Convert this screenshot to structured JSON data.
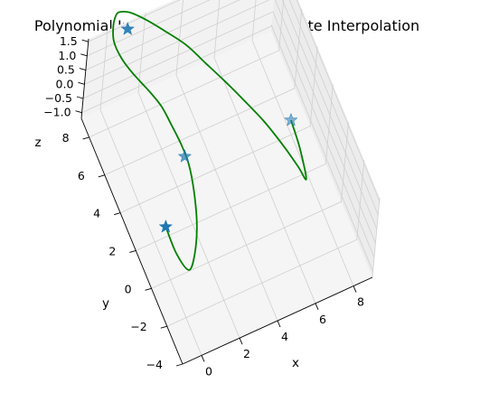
{
  "chart_data": {
    "type": "line",
    "title": "Polynomial Interpolation, Cubic Hermite Interpolation",
    "xlabel": "x",
    "ylabel": "y",
    "zlabel": "z",
    "xlim": [
      -1,
      9
    ],
    "ylim": [
      -4,
      9
    ],
    "zlim": [
      -1.2,
      1.6
    ],
    "x_ticks": [
      "0",
      "2",
      "4",
      "6",
      "8"
    ],
    "y_ticks": [
      "−4",
      "−2",
      "0",
      "2",
      "4",
      "6",
      "8"
    ],
    "z_ticks": [
      "−1.0",
      "−0.5",
      "0.0",
      "0.5",
      "1.0",
      "1.5"
    ],
    "grid": true,
    "colors": {
      "curve": "#008000",
      "points": "#1f77b4",
      "pane": "#f2f2f2",
      "grid": "#cfcfcf"
    },
    "series": [
      {
        "type": "line",
        "x": [
          0,
          0.3,
          0.8,
          1.2,
          1.6,
          1.9,
          2.1,
          2.0,
          1.8,
          1.5,
          1.1,
          0.6,
          0.3,
          0.2,
          0.4,
          0.7,
          1.0,
          1.5,
          2.2,
          3.0,
          3.8,
          4.5,
          5.2,
          5.9,
          6.6,
          7.2,
          7.6,
          7.8,
          7.7,
          7.5
        ],
        "y": [
          1,
          0.2,
          -0.3,
          0,
          0.8,
          2,
          3.2,
          4.0,
          4.8,
          5.5,
          6.2,
          7.0,
          7.8,
          8.6,
          9.2,
          9.6,
          9.8,
          9.7,
          9.3,
          8.6,
          7.8,
          7.0,
          6.2,
          5.3,
          4.3,
          3.2,
          2.2,
          1.6,
          2.4,
          3.2
        ],
        "z": [
          0,
          -0.5,
          -0.9,
          -0.7,
          -0.3,
          0,
          0.1,
          0.3,
          0.5,
          0.8,
          1.0,
          1.2,
          1.3,
          1.4,
          1.5,
          1.5,
          1.4,
          1.3,
          1.1,
          0.9,
          0.7,
          0.4,
          0.1,
          -0.2,
          -0.5,
          -0.8,
          -1.0,
          -1.1,
          -0.5,
          0
        ]
      },
      {
        "type": "scatter",
        "marker": "star",
        "x": [
          0,
          2,
          1.1,
          7.5
        ],
        "y": [
          1,
          3.5,
          9.0,
          3.2
        ],
        "z": [
          0,
          0.2,
          1.3,
          0
        ]
      }
    ]
  }
}
